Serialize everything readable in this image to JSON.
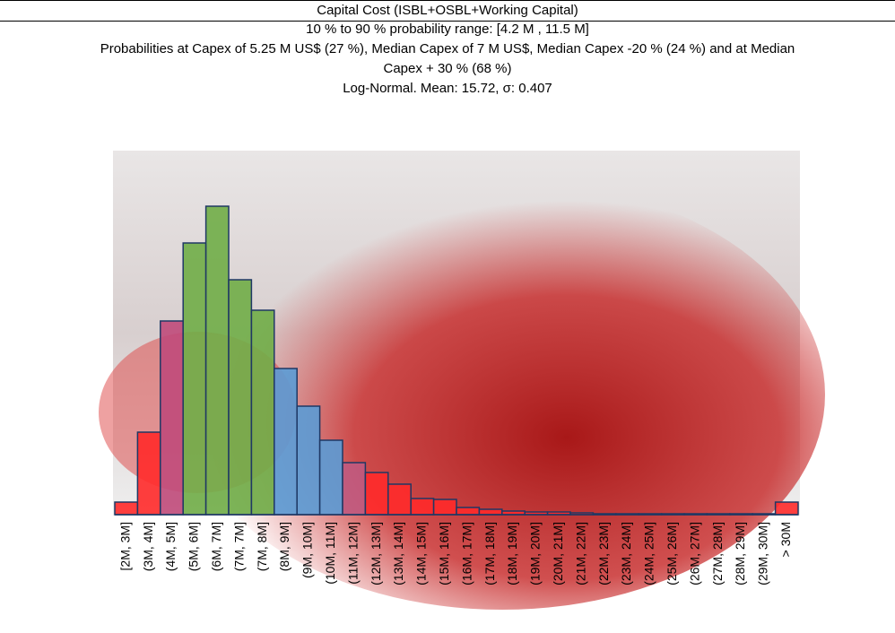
{
  "chart_data": {
    "type": "bar",
    "title": "Capital Cost (ISBL+OSBL+Working Capital)",
    "subtitles": [
      "10 % to 90 % probability range: [4.2 M , 11.5 M]",
      "Probabilities at Capex of 5.25 M US$ (27 %), Median Capex of 7 M US$, Median Capex -20 % (24 %) and at Median Capex + 30 % (68 %)",
      "Log-Normal. Mean: 15.72, σ: 0.407"
    ],
    "categories": [
      "[2M, 3M]",
      "(3M, 4M]",
      "(4M, 5M]",
      "(5M, 6M]",
      "(6M, 7M]",
      "(7M, 7M]",
      "(7M, 8M]",
      "(8M, 9M]",
      "(9M, 10M]",
      "(10M, 11M]",
      "(11M, 12M]",
      "(12M, 13M]",
      "(13M, 14M]",
      "(14M, 15M]",
      "(15M, 16M]",
      "(16M, 17M]",
      "(17M, 18M]",
      "(18M, 19M]",
      "(19M, 20M]",
      "(20M, 21M]",
      "(21M, 22M]",
      "(22M, 23M]",
      "(23M, 24M]",
      "(24M, 25M]",
      "(25M, 26M]",
      "(26M, 27M]",
      "(27M, 28M]",
      "(28M, 29M]",
      "(29M, 30M]",
      "> 30M"
    ],
    "values": [
      14,
      92,
      216,
      303,
      344,
      262,
      228,
      163,
      121,
      83,
      58,
      47,
      34,
      18,
      17,
      8,
      6,
      4,
      3,
      3,
      2,
      1,
      1,
      1,
      1,
      1,
      1,
      1,
      1,
      14
    ],
    "colors": [
      "#ff2a2a",
      "#ff2a2a",
      "#c04a7a",
      "#70ad47",
      "#70ad47",
      "#70ad47",
      "#70ad47",
      "#5b9bd5",
      "#5b9bd5",
      "#5b9bd5",
      "#c05a80",
      "#ff2a2a",
      "#ff2a2a",
      "#ff2a2a",
      "#ff2a2a",
      "#ff2a2a",
      "#ff2a2a",
      "#ff2a2a",
      "#ff2a2a",
      "#ff2a2a",
      "#ff2a2a",
      "#ff2a2a",
      "#ff2a2a",
      "#ff2a2a",
      "#ff2a2a",
      "#ff2a2a",
      "#ff2a2a",
      "#ff2a2a",
      "#ff2a2a",
      "#ff2a2a"
    ],
    "edge_color": "#1f3864",
    "ylim": [
      0,
      350
    ]
  }
}
